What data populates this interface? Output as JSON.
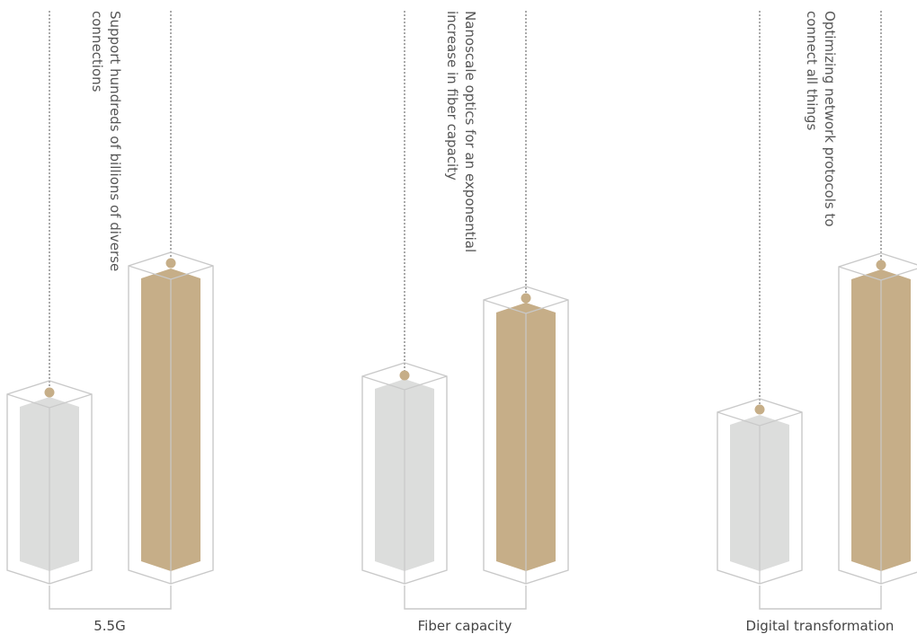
{
  "colors": {
    "accent": "#c6ae88",
    "baseline": "#dcdddc",
    "outline": "#c9c9c9",
    "dotted": "#555555"
  },
  "groups": [
    {
      "label": "5.5G",
      "description": "Support hundreds of billions of diverse connections"
    },
    {
      "label": "Fiber capacity",
      "description": "Nanoscale optics for an exponential increase in fiber capacity"
    },
    {
      "label": "Digital transformation",
      "description": "Optimizing network protocols to connect all things"
    }
  ]
}
